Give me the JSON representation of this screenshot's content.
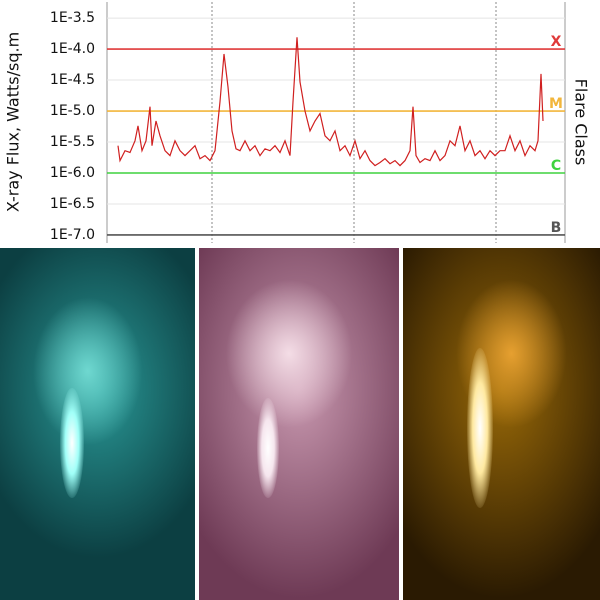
{
  "chart_data": {
    "type": "line",
    "ylabel": "X-ray Flux, Watts/sq.m",
    "y2label": "Flare Class",
    "ylim": [
      -7.13,
      -3.24
    ],
    "yticks": [
      {
        "value": -3.5,
        "label": "1E-3.5"
      },
      {
        "value": -4.0,
        "label": "1E-4.0"
      },
      {
        "value": -4.5,
        "label": "1E-4.5"
      },
      {
        "value": -5.0,
        "label": "1E-5.0"
      },
      {
        "value": -5.5,
        "label": "1E-5.5"
      },
      {
        "value": -6.0,
        "label": "1E-6.0"
      },
      {
        "value": -6.5,
        "label": "1E-6.5"
      },
      {
        "value": -7.0,
        "label": "1E-7.0"
      }
    ],
    "xlim": [
      0,
      458
    ],
    "color": "#d02020",
    "reference_lines": [
      {
        "value": -4,
        "label": "X",
        "color": "#e03a3a"
      },
      {
        "value": -5,
        "label": "M",
        "color": "#f2b63c"
      },
      {
        "value": -6,
        "label": "C",
        "color": "#3fd23f"
      },
      {
        "value": -7,
        "label": "B",
        "color": "#555555"
      }
    ],
    "x": [
      11,
      13,
      18,
      23,
      28,
      31,
      35,
      39,
      43,
      45,
      49,
      53,
      58,
      63,
      68,
      73,
      78,
      83,
      88,
      93,
      98,
      103,
      108,
      113,
      117,
      121,
      125,
      129,
      133,
      138,
      143,
      148,
      153,
      158,
      163,
      168,
      173,
      178,
      183,
      186,
      190,
      193,
      198,
      203,
      208,
      213,
      218,
      223,
      228,
      233,
      238,
      243,
      248,
      253,
      258,
      263,
      268,
      273,
      278,
      283,
      288,
      293,
      298,
      303,
      306,
      309,
      313,
      318,
      323,
      328,
      333,
      338,
      343,
      348,
      353,
      358,
      363,
      368,
      373,
      378,
      383,
      388,
      393,
      398,
      403,
      408,
      413,
      418,
      423,
      428,
      431,
      434,
      436
    ],
    "values": [
      -5.56,
      -5.8,
      -5.64,
      -5.67,
      -5.48,
      -5.24,
      -5.64,
      -5.48,
      -4.93,
      -5.56,
      -5.16,
      -5.4,
      -5.64,
      -5.72,
      -5.48,
      -5.64,
      -5.72,
      -5.64,
      -5.56,
      -5.77,
      -5.72,
      -5.8,
      -5.64,
      -4.85,
      -4.08,
      -4.61,
      -5.32,
      -5.61,
      -5.64,
      -5.48,
      -5.64,
      -5.56,
      -5.72,
      -5.61,
      -5.64,
      -5.56,
      -5.67,
      -5.48,
      -5.72,
      -4.85,
      -3.81,
      -4.53,
      -5.0,
      -5.32,
      -5.16,
      -5.04,
      -5.4,
      -5.48,
      -5.32,
      -5.64,
      -5.56,
      -5.72,
      -5.48,
      -5.77,
      -5.64,
      -5.8,
      -5.88,
      -5.83,
      -5.77,
      -5.85,
      -5.8,
      -5.88,
      -5.8,
      -5.64,
      -4.93,
      -5.72,
      -5.83,
      -5.77,
      -5.8,
      -5.64,
      -5.8,
      -5.72,
      -5.48,
      -5.56,
      -5.24,
      -5.64,
      -5.48,
      -5.72,
      -5.64,
      -5.77,
      -5.64,
      -5.72,
      -5.64,
      -5.64,
      -5.4,
      -5.64,
      -5.48,
      -5.72,
      -5.56,
      -5.64,
      -5.48,
      -4.4,
      -5.16
    ]
  }
}
